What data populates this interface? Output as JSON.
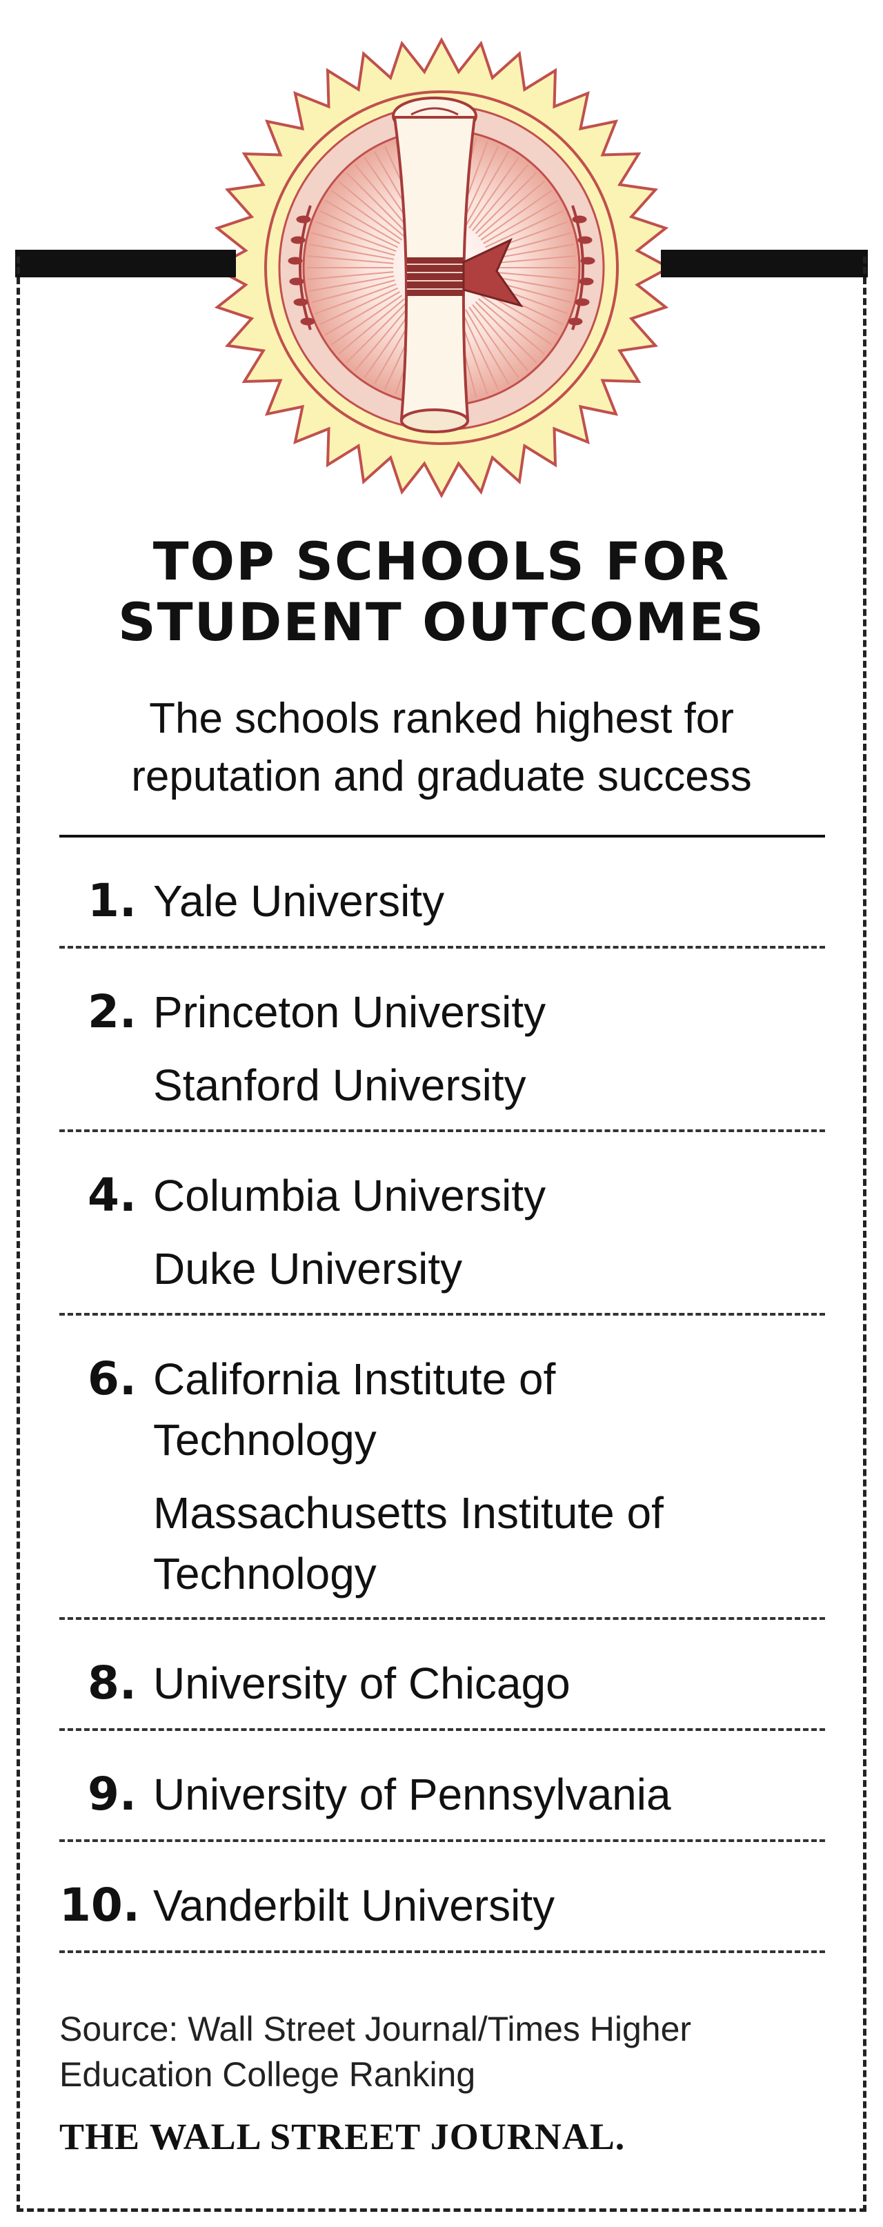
{
  "title_line1": "TOP SCHOOLS FOR",
  "title_line2": "STUDENT OUTCOMES",
  "subtitle_line1": "The schools ranked highest for",
  "subtitle_line2": "reputation and graduate success",
  "rankings": [
    {
      "rank": "1.",
      "schools": [
        "Yale University"
      ]
    },
    {
      "rank": "2.",
      "schools": [
        "Princeton University",
        "Stanford University"
      ]
    },
    {
      "rank": "4.",
      "schools": [
        "Columbia University",
        "Duke University"
      ]
    },
    {
      "rank": "6.",
      "schools": [
        "California Institute of Technology",
        "Massachusetts Institute of Technology"
      ]
    },
    {
      "rank": "8.",
      "schools": [
        "University of Chicago"
      ]
    },
    {
      "rank": "9.",
      "schools": [
        "University of Pennsylvania"
      ]
    },
    {
      "rank": "10.",
      "schools": [
        "Vanderbilt University"
      ]
    }
  ],
  "source_line1": "Source: Wall Street Journal/Times Higher",
  "source_line2": "Education College Ranking",
  "publisher": "THE WALL STREET JOURNAL.",
  "colors": {
    "seal_outer": "#fbf3b4",
    "seal_rim": "#c0504d",
    "seal_inner": "#f0c6bd",
    "ink": "#111111"
  },
  "icon": "diploma-scroll-seal-icon"
}
